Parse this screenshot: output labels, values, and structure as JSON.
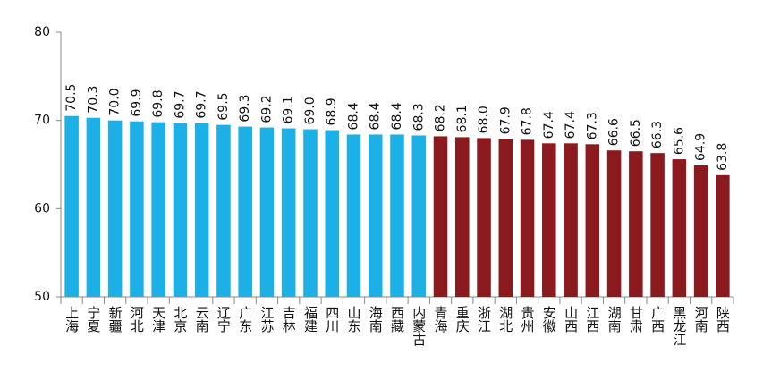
{
  "chart_data": {
    "type": "bar",
    "categories": [
      "上海",
      "宁夏",
      "新疆",
      "河北",
      "天津",
      "北京",
      "云南",
      "辽宁",
      "广东",
      "江苏",
      "吉林",
      "福建",
      "四川",
      "山东",
      "海南",
      "西藏",
      "内蒙古",
      "青海",
      "重庆",
      "浙江",
      "湖北",
      "贵州",
      "安徽",
      "山西",
      "江西",
      "湖南",
      "甘肃",
      "广西",
      "黑龙江",
      "河南",
      "陕西"
    ],
    "values": [
      70.5,
      70.3,
      70.0,
      69.9,
      69.8,
      69.7,
      69.7,
      69.5,
      69.3,
      69.2,
      69.1,
      69.0,
      68.9,
      68.4,
      68.4,
      68.4,
      68.3,
      68.2,
      68.1,
      68.0,
      67.9,
      67.8,
      67.4,
      67.4,
      67.3,
      66.6,
      66.5,
      66.3,
      65.6,
      64.9,
      63.8
    ],
    "value_labels": [
      "70.5",
      "70.3",
      "70.0",
      "69.9",
      "69.8",
      "69.7",
      "69.7",
      "69.5",
      "69.3",
      "69.2",
      "69.1",
      "69.0",
      "68.9",
      "68.4",
      "68.4",
      "68.4",
      "68.3",
      "68.2",
      "68.1",
      "68.0",
      "67.9",
      "67.8",
      "67.4",
      "67.4",
      "67.3",
      "66.6",
      "66.5",
      "66.3",
      "65.6",
      "64.9",
      "63.8"
    ],
    "colors": [
      "#1cb0e6",
      "#1cb0e6",
      "#1cb0e6",
      "#1cb0e6",
      "#1cb0e6",
      "#1cb0e6",
      "#1cb0e6",
      "#1cb0e6",
      "#1cb0e6",
      "#1cb0e6",
      "#1cb0e6",
      "#1cb0e6",
      "#1cb0e6",
      "#1cb0e6",
      "#1cb0e6",
      "#1cb0e6",
      "#1cb0e6",
      "#8b1a1e",
      "#8b1a1e",
      "#8b1a1e",
      "#8b1a1e",
      "#8b1a1e",
      "#8b1a1e",
      "#8b1a1e",
      "#8b1a1e",
      "#8b1a1e",
      "#8b1a1e",
      "#8b1a1e",
      "#8b1a1e",
      "#8b1a1e",
      "#8b1a1e"
    ],
    "ylim": [
      50,
      80
    ],
    "yticks": [
      50,
      60,
      70,
      80
    ],
    "grid": false
  }
}
